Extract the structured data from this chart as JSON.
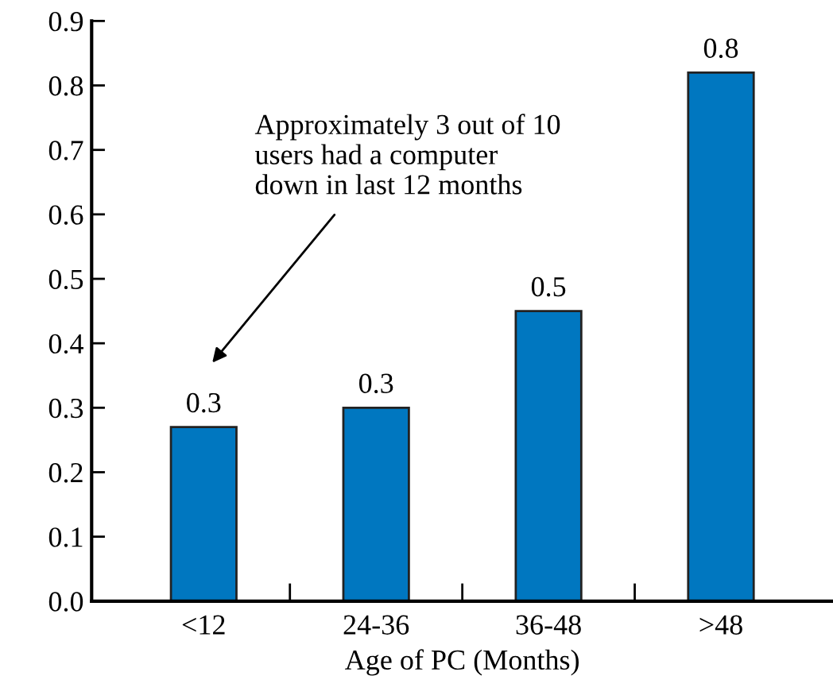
{
  "chart_data": {
    "type": "bar",
    "xlabel": "Age of PC (Months)",
    "categories": [
      "<12",
      "24-36",
      "36-48",
      ">48"
    ],
    "values": [
      0.27,
      0.3,
      0.45,
      0.82
    ],
    "value_labels": [
      "0.3",
      "0.3",
      "0.5",
      "0.8"
    ],
    "color": "#0077c0",
    "ylim": [
      0,
      0.9
    ],
    "yticks": [
      {
        "value": 0,
        "label": "0.0"
      },
      {
        "value": 0.1,
        "label": "0.1"
      },
      {
        "value": 0.2,
        "label": "0.2"
      },
      {
        "value": 0.3,
        "label": "0.3"
      },
      {
        "value": 0.4,
        "label": "0.4"
      },
      {
        "value": 0.5,
        "label": "0.5"
      },
      {
        "value": 0.6,
        "label": "0.6"
      },
      {
        "value": 0.7,
        "label": "0.7"
      },
      {
        "value": 0.8,
        "label": "0.8"
      },
      {
        "value": 0.9,
        "label": "0.9"
      }
    ],
    "annotations": [
      "Approximately 3 out of 10\nusers had a computer\ndown in last 12 months"
    ],
    "grid": false,
    "legend": false
  }
}
